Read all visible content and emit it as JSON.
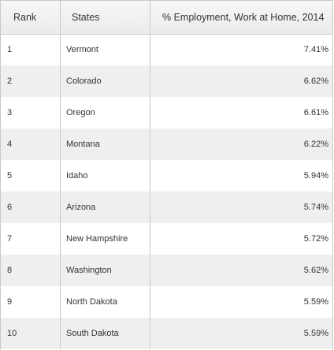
{
  "table": {
    "headers": {
      "rank": "Rank",
      "state": "States",
      "value": "% Employment, Work at Home, 2014"
    },
    "rows": [
      {
        "rank": "1",
        "state": "Vermont",
        "value": "7.41%"
      },
      {
        "rank": "2",
        "state": "Colorado",
        "value": "6.62%"
      },
      {
        "rank": "3",
        "state": "Oregon",
        "value": "6.61%"
      },
      {
        "rank": "4",
        "state": "Montana",
        "value": "6.22%"
      },
      {
        "rank": "5",
        "state": "Idaho",
        "value": "5.94%"
      },
      {
        "rank": "6",
        "state": "Arizona",
        "value": "5.74%"
      },
      {
        "rank": "7",
        "state": "New Hampshire",
        "value": "5.72%"
      },
      {
        "rank": "8",
        "state": "Washington",
        "value": "5.62%"
      },
      {
        "rank": "9",
        "state": "North Dakota",
        "value": "5.59%"
      },
      {
        "rank": "10",
        "state": "South Dakota",
        "value": "5.59%"
      }
    ]
  }
}
